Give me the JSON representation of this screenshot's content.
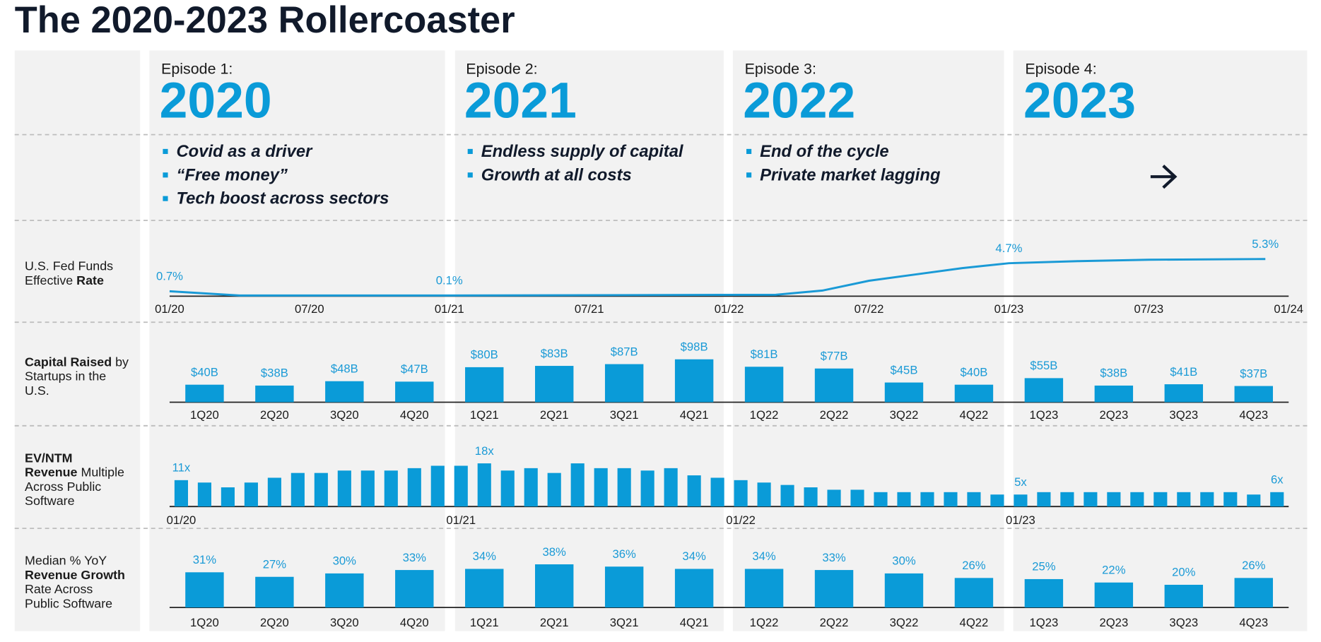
{
  "title": "The 2020-2023 Rollercoaster",
  "episodes": [
    {
      "label": "Episode 1:",
      "year": "2020",
      "bullets": [
        "Covid as a driver",
        "“Free money”",
        "Tech boost across sectors"
      ]
    },
    {
      "label": "Episode 2:",
      "year": "2021",
      "bullets": [
        "Endless supply of capital",
        "Growth at all costs"
      ]
    },
    {
      "label": "Episode 3:",
      "year": "2022",
      "bullets": [
        "End of the cycle",
        "Private market lagging"
      ]
    },
    {
      "label": "Episode 4:",
      "year": "2023",
      "bullets": []
    }
  ],
  "chart_data": [
    {
      "type": "line",
      "label": [
        [
          {
            "text": "U.S. Fed Funds"
          }
        ],
        [
          {
            "text": "Effective "
          },
          {
            "text": "Rate",
            "bold": true
          }
        ]
      ],
      "x": [
        "01/20",
        "04/20",
        "01/21",
        "03/22",
        "05/22",
        "07/22",
        "09/22",
        "11/22",
        "01/23",
        "04/23",
        "07/23",
        "12/23"
      ],
      "values": [
        0.7,
        0.1,
        0.1,
        0.2,
        0.8,
        2.2,
        3.1,
        4.0,
        4.7,
        5.0,
        5.2,
        5.3
      ],
      "value_labels": [
        "0.7%",
        null,
        "0.1%",
        null,
        null,
        null,
        null,
        null,
        "4.7%",
        null,
        null,
        "5.3%"
      ],
      "xlim": [
        "01/20",
        "01/24"
      ],
      "xticks": [
        "01/20",
        "07/20",
        "01/21",
        "07/21",
        "01/22",
        "07/22",
        "01/23",
        "07/23",
        "01/24"
      ],
      "ylim": [
        0,
        6
      ],
      "color": "#1a9ad6"
    },
    {
      "type": "bar",
      "label": [
        [
          {
            "text": "Capital Raised",
            "bold": true
          },
          {
            "text": " by"
          }
        ],
        [
          {
            "text": "Startups in the"
          }
        ],
        [
          {
            "text": "U.S."
          }
        ]
      ],
      "categories": [
        "1Q20",
        "2Q20",
        "3Q20",
        "4Q20",
        "1Q21",
        "2Q21",
        "3Q21",
        "4Q21",
        "1Q22",
        "2Q22",
        "3Q22",
        "4Q22",
        "1Q23",
        "2Q23",
        "3Q23",
        "4Q23"
      ],
      "values": [
        40,
        38,
        48,
        47,
        80,
        83,
        87,
        98,
        81,
        77,
        45,
        40,
        55,
        38,
        41,
        37
      ],
      "value_labels": [
        "$40B",
        "$38B",
        "$48B",
        "$47B",
        "$80B",
        "$83B",
        "$87B",
        "$98B",
        "$81B",
        "$77B",
        "$45B",
        "$40B",
        "$55B",
        "$38B",
        "$41B",
        "$37B"
      ],
      "ylim": [
        0,
        100
      ],
      "color": "#0a9bd8"
    },
    {
      "type": "bar",
      "label": [
        [
          {
            "text": "EV/NTM",
            "bold": true
          }
        ],
        [
          {
            "text": "Revenue",
            "bold": true
          },
          {
            "text": " Multiple"
          }
        ],
        [
          {
            "text": "Across Public"
          }
        ],
        [
          {
            "text": "Software"
          }
        ]
      ],
      "categories": [
        "01/20",
        null,
        null,
        null,
        null,
        null,
        null,
        null,
        null,
        null,
        null,
        null,
        "01/21",
        null,
        null,
        null,
        null,
        null,
        null,
        null,
        null,
        null,
        null,
        null,
        "01/22",
        null,
        null,
        null,
        null,
        null,
        null,
        null,
        null,
        null,
        null,
        null,
        "01/23",
        null,
        null,
        null,
        null,
        null,
        null,
        null,
        null,
        null,
        null,
        null
      ],
      "values": [
        11,
        10,
        8,
        10,
        12,
        14,
        14,
        15,
        15,
        15,
        16,
        17,
        17,
        18,
        15,
        16,
        14,
        18,
        16,
        16,
        15,
        16,
        13,
        12,
        11,
        10,
        9,
        8,
        7,
        7,
        6,
        6,
        6,
        6,
        6,
        5,
        5,
        6,
        6,
        6,
        6,
        6,
        6,
        6,
        6,
        6,
        5,
        6
      ],
      "value_labels": [
        "11x",
        null,
        null,
        null,
        null,
        null,
        null,
        null,
        null,
        null,
        null,
        null,
        null,
        "18x",
        null,
        null,
        null,
        null,
        null,
        null,
        null,
        null,
        null,
        null,
        null,
        null,
        null,
        null,
        null,
        null,
        null,
        null,
        null,
        null,
        null,
        null,
        "5x",
        null,
        null,
        null,
        null,
        null,
        null,
        null,
        null,
        null,
        null,
        "6x"
      ],
      "ylim": [
        0,
        20
      ],
      "color": "#0a9bd8"
    },
    {
      "type": "bar",
      "label": [
        [
          {
            "text": "Median % YoY"
          }
        ],
        [
          {
            "text": "Revenue Growth",
            "bold": true
          }
        ],
        [
          {
            "text": "Rate Across"
          }
        ],
        [
          {
            "text": "Public Software"
          }
        ]
      ],
      "categories": [
        "1Q20",
        "2Q20",
        "3Q20",
        "4Q20",
        "1Q21",
        "2Q21",
        "3Q21",
        "4Q21",
        "1Q22",
        "2Q22",
        "3Q22",
        "4Q22",
        "1Q23",
        "2Q23",
        "3Q23",
        "4Q23"
      ],
      "values": [
        31,
        27,
        30,
        33,
        34,
        38,
        36,
        34,
        34,
        33,
        30,
        26,
        25,
        22,
        20,
        26
      ],
      "value_labels": [
        "31%",
        "27%",
        "30%",
        "33%",
        "34%",
        "38%",
        "36%",
        "34%",
        "34%",
        "33%",
        "30%",
        "26%",
        "25%",
        "22%",
        "20%",
        "26%"
      ],
      "ylim": [
        0,
        40
      ],
      "color": "#0a9bd8"
    }
  ]
}
